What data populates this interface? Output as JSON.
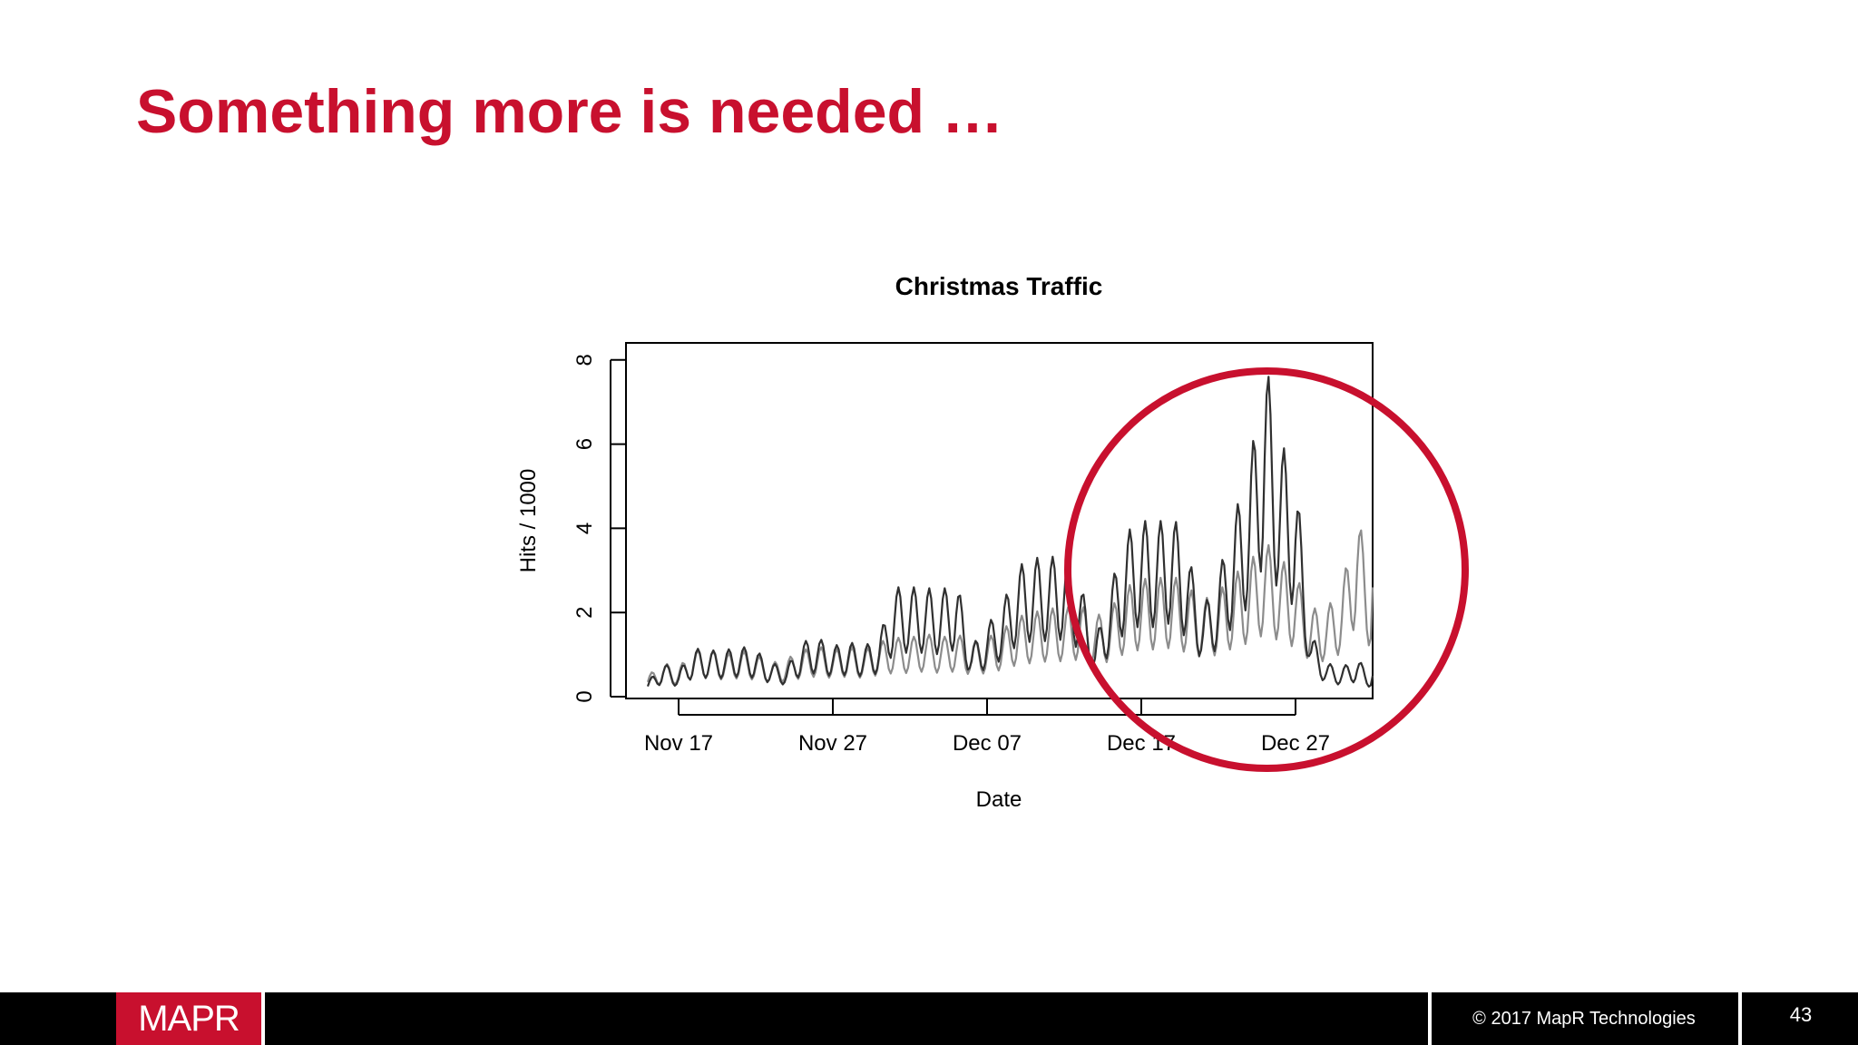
{
  "slide": {
    "title": "Something more is needed …"
  },
  "highlight": {
    "color": "#c8102e",
    "shape": "circle",
    "target": "Dec 17 – Dec 31 peak"
  },
  "chart_data": {
    "type": "line",
    "title": "Christmas Traffic",
    "xlabel": "Date",
    "ylabel": "Hits / 1000",
    "ylim": [
      0,
      8.2
    ],
    "yticks": [
      0,
      2,
      4,
      6,
      8
    ],
    "xlim": [
      "2017-11-13",
      "2018-01-01"
    ],
    "xticks": [
      {
        "date": "2017-11-17",
        "label": "Nov 17"
      },
      {
        "date": "2017-11-27",
        "label": "Nov 27"
      },
      {
        "date": "2017-12-07",
        "label": "Dec 07"
      },
      {
        "date": "2017-12-17",
        "label": "Dec 17"
      },
      {
        "date": "2017-12-27",
        "label": "Dec 27"
      }
    ],
    "grid": false,
    "series": [
      {
        "color": "#303030",
        "points": [
          [
            "2017-11-15",
            0.35
          ],
          [
            "2017-11-16",
            0.8
          ],
          [
            "2017-11-17",
            0.6
          ],
          [
            "2017-11-18",
            1.15
          ],
          [
            "2017-11-19",
            1.1
          ],
          [
            "2017-11-20",
            1.1
          ],
          [
            "2017-11-21",
            1.2
          ],
          [
            "2017-11-22",
            1.1
          ],
          [
            "2017-11-23",
            0.8
          ],
          [
            "2017-11-24",
            0.7
          ],
          [
            "2017-11-25",
            1.3
          ],
          [
            "2017-11-26",
            1.4
          ],
          [
            "2017-11-27",
            1.2
          ],
          [
            "2017-11-28",
            1.3
          ],
          [
            "2017-11-29",
            1.2
          ],
          [
            "2017-11-30",
            1.4
          ],
          [
            "2017-12-01",
            2.6
          ],
          [
            "2017-12-02",
            2.6
          ],
          [
            "2017-12-03",
            2.6
          ],
          [
            "2017-12-04",
            2.5
          ],
          [
            "2017-12-05",
            2.8
          ],
          [
            "2017-12-06",
            1.2
          ],
          [
            "2017-12-07",
            1.7
          ],
          [
            "2017-12-08",
            2.2
          ],
          [
            "2017-12-09",
            3.1
          ],
          [
            "2017-12-10",
            3.3
          ],
          [
            "2017-12-11",
            3.3
          ],
          [
            "2017-12-12",
            3.4
          ],
          [
            "2017-12-13",
            2.8
          ],
          [
            "2017-12-14",
            1.3
          ],
          [
            "2017-12-15",
            2.6
          ],
          [
            "2017-12-16",
            3.9
          ],
          [
            "2017-12-17",
            4.2
          ],
          [
            "2017-12-18",
            4.1
          ],
          [
            "2017-12-19",
            4.4
          ],
          [
            "2017-12-20",
            3.4
          ],
          [
            "2017-12-21",
            2.1
          ],
          [
            "2017-12-22",
            2.9
          ],
          [
            "2017-12-23",
            4.3
          ],
          [
            "2017-12-24",
            5.4
          ],
          [
            "2017-12-25",
            8.1
          ],
          [
            "2017-12-26",
            6.1
          ],
          [
            "2017-12-27",
            5.3
          ],
          [
            "2017-12-28",
            1.5
          ],
          [
            "2017-12-29",
            0.8
          ],
          [
            "2017-12-30",
            0.7
          ],
          [
            "2017-12-31",
            0.9
          ],
          [
            "2018-01-01",
            0.5
          ]
        ]
      },
      {
        "color": "#8c8c8c",
        "points": [
          [
            "2017-11-15",
            0.5
          ],
          [
            "2017-11-16",
            0.8
          ],
          [
            "2017-11-17",
            0.7
          ],
          [
            "2017-11-18",
            1.1
          ],
          [
            "2017-11-19",
            1.1
          ],
          [
            "2017-11-20",
            1.0
          ],
          [
            "2017-11-21",
            1.1
          ],
          [
            "2017-11-22",
            1.0
          ],
          [
            "2017-11-23",
            0.8
          ],
          [
            "2017-11-24",
            0.9
          ],
          [
            "2017-11-25",
            1.1
          ],
          [
            "2017-11-26",
            1.2
          ],
          [
            "2017-11-27",
            1.1
          ],
          [
            "2017-11-28",
            1.2
          ],
          [
            "2017-11-29",
            1.1
          ],
          [
            "2017-11-30",
            1.3
          ],
          [
            "2017-12-01",
            1.4
          ],
          [
            "2017-12-02",
            1.4
          ],
          [
            "2017-12-03",
            1.5
          ],
          [
            "2017-12-04",
            1.4
          ],
          [
            "2017-12-05",
            1.5
          ],
          [
            "2017-12-06",
            1.3
          ],
          [
            "2017-12-07",
            1.4
          ],
          [
            "2017-12-08",
            1.6
          ],
          [
            "2017-12-09",
            1.9
          ],
          [
            "2017-12-10",
            2.0
          ],
          [
            "2017-12-11",
            2.1
          ],
          [
            "2017-12-12",
            2.1
          ],
          [
            "2017-12-13",
            2.2
          ],
          [
            "2017-12-14",
            1.9
          ],
          [
            "2017-12-15",
            2.1
          ],
          [
            "2017-12-16",
            2.6
          ],
          [
            "2017-12-17",
            2.8
          ],
          [
            "2017-12-18",
            2.8
          ],
          [
            "2017-12-19",
            2.9
          ],
          [
            "2017-12-20",
            2.6
          ],
          [
            "2017-12-21",
            2.3
          ],
          [
            "2017-12-22",
            2.5
          ],
          [
            "2017-12-23",
            2.9
          ],
          [
            "2017-12-24",
            3.2
          ],
          [
            "2017-12-25",
            3.7
          ],
          [
            "2017-12-26",
            3.3
          ],
          [
            "2017-12-27",
            2.9
          ],
          [
            "2017-12-28",
            2.1
          ],
          [
            "2017-12-29",
            2.1
          ],
          [
            "2017-12-30",
            2.6
          ],
          [
            "2017-12-31",
            4.4
          ],
          [
            "2018-01-01",
            2.6
          ]
        ]
      }
    ]
  },
  "footer": {
    "logo_text": "MAPR",
    "copyright": "© 2017 MapR Technologies",
    "page_number": "43"
  }
}
